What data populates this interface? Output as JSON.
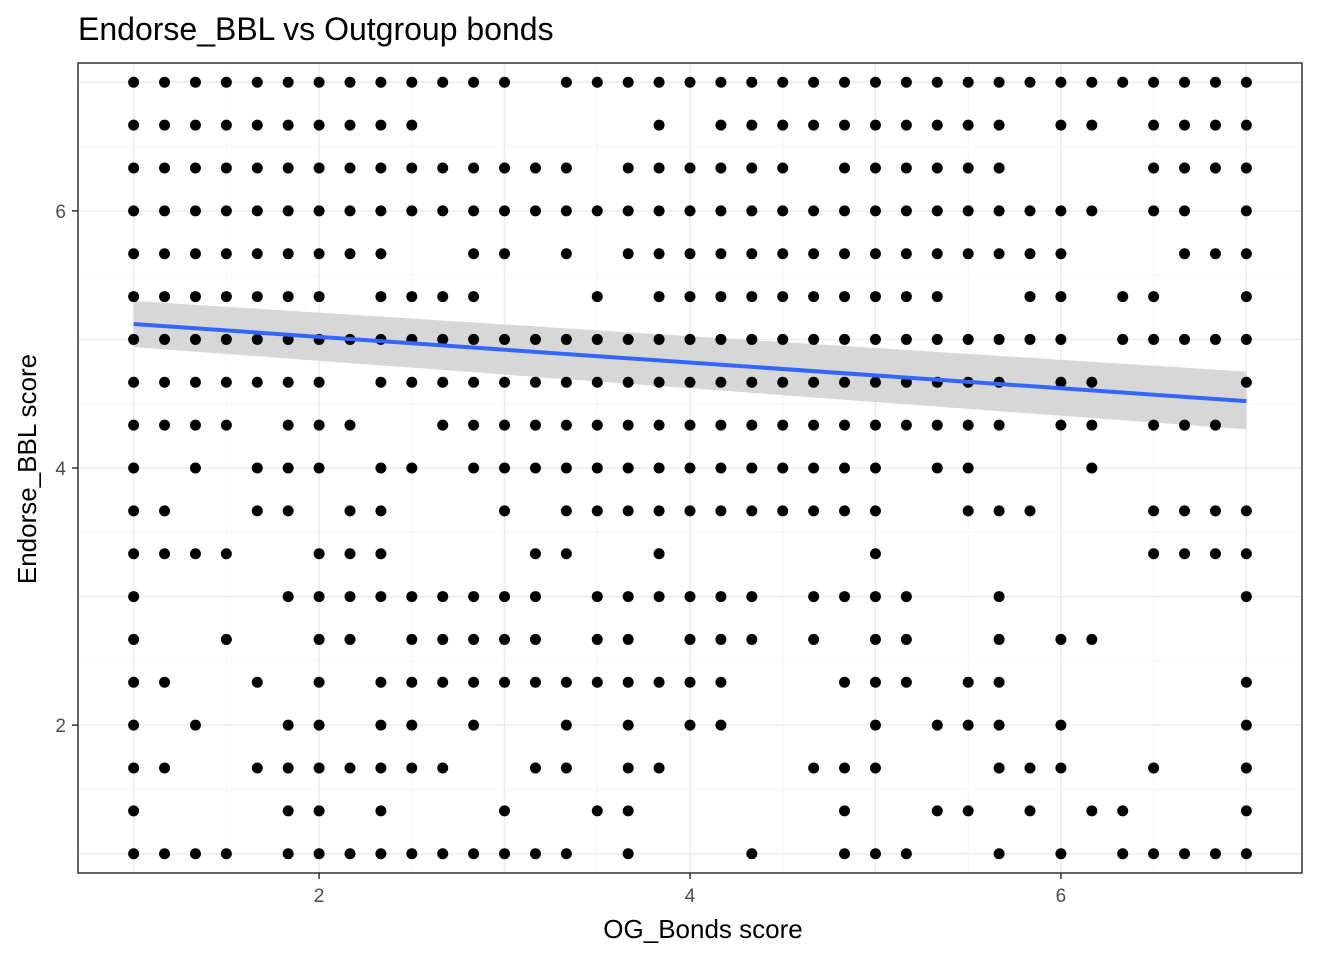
{
  "chart_data": {
    "type": "scatter",
    "title": "Endorse_BBL vs Outgroup bonds",
    "xlabel": "OG_Bonds score",
    "ylabel": "Endorse_BBL score",
    "xlim": [
      0.7,
      7.3
    ],
    "ylim": [
      0.85,
      7.15
    ],
    "x_ticks": [
      2,
      4,
      6
    ],
    "y_ticks": [
      2,
      4,
      6
    ],
    "x_grid": [
      1,
      2,
      3,
      4,
      5,
      6,
      7
    ],
    "y_grid": [
      1,
      2,
      3,
      4,
      5,
      6,
      7
    ],
    "grid": true,
    "colors": {
      "points": "#000000",
      "fit_line": "#3366FF",
      "confidence_band": "#D3D3D3",
      "panel_border": "#333333",
      "grid_major": "#EBEBEB",
      "grid_minor": "#F5F5F5"
    },
    "x_grid_values": [
      1.0,
      1.1667,
      1.3333,
      1.5,
      1.6667,
      1.8333,
      2.0,
      2.1667,
      2.3333,
      2.5,
      2.6667,
      2.8333,
      3.0,
      3.1667,
      3.3333,
      3.5,
      3.6667,
      3.8333,
      4.0,
      4.1667,
      4.3333,
      4.5,
      4.6667,
      4.8333,
      5.0,
      5.1667,
      5.3333,
      5.5,
      5.6667,
      5.8333,
      6.0,
      6.1667,
      6.3333,
      6.5,
      6.6667,
      6.8333,
      7.0
    ],
    "y_levels": [
      7.0,
      6.6667,
      6.3333,
      6.0,
      5.6667,
      5.3333,
      5.0,
      4.6667,
      4.3333,
      4.0,
      3.6667,
      3.3333,
      3.0,
      2.6667,
      2.3333,
      2.0,
      1.6667,
      1.3333,
      1.0
    ],
    "points_by_y": [
      {
        "y": 7.0,
        "x_idx": [
          0,
          1,
          2,
          3,
          4,
          5,
          6,
          7,
          8,
          9,
          10,
          11,
          12,
          14,
          15,
          16,
          17,
          18,
          19,
          20,
          21,
          22,
          23,
          24,
          25,
          26,
          27,
          28,
          29,
          30,
          31,
          32,
          33,
          34,
          35,
          36
        ]
      },
      {
        "y": 6.6667,
        "x_idx": [
          0,
          1,
          2,
          3,
          4,
          5,
          6,
          7,
          8,
          9,
          17,
          19,
          20,
          21,
          22,
          23,
          24,
          25,
          26,
          27,
          28,
          30,
          31,
          33,
          34,
          35,
          36
        ]
      },
      {
        "y": 6.3333,
        "x_idx": [
          0,
          1,
          2,
          3,
          4,
          5,
          6,
          7,
          8,
          9,
          10,
          11,
          12,
          13,
          14,
          16,
          17,
          18,
          19,
          20,
          21,
          23,
          24,
          25,
          26,
          27,
          28,
          33,
          34,
          35,
          36
        ]
      },
      {
        "y": 6.0,
        "x_idx": [
          0,
          1,
          2,
          3,
          4,
          5,
          6,
          7,
          8,
          9,
          10,
          11,
          12,
          13,
          14,
          15,
          16,
          17,
          18,
          19,
          20,
          21,
          22,
          23,
          24,
          25,
          26,
          27,
          28,
          29,
          30,
          31,
          33,
          34,
          36
        ]
      },
      {
        "y": 5.6667,
        "x_idx": [
          0,
          1,
          2,
          3,
          4,
          5,
          6,
          7,
          8,
          11,
          12,
          14,
          16,
          17,
          18,
          19,
          20,
          21,
          22,
          23,
          24,
          25,
          26,
          27,
          28,
          29,
          30,
          34,
          35,
          36
        ]
      },
      {
        "y": 5.3333,
        "x_idx": [
          0,
          1,
          2,
          3,
          4,
          5,
          6,
          8,
          9,
          10,
          11,
          15,
          17,
          18,
          19,
          20,
          21,
          22,
          23,
          24,
          25,
          26,
          29,
          30,
          32,
          33,
          36
        ]
      },
      {
        "y": 5.0,
        "x_idx": [
          0,
          1,
          2,
          3,
          4,
          5,
          6,
          7,
          8,
          9,
          10,
          11,
          12,
          13,
          14,
          15,
          16,
          17,
          18,
          19,
          20,
          21,
          22,
          23,
          24,
          25,
          26,
          27,
          28,
          29,
          30,
          32,
          33,
          34,
          35,
          36
        ]
      },
      {
        "y": 4.6667,
        "x_idx": [
          0,
          1,
          2,
          3,
          4,
          5,
          6,
          8,
          9,
          10,
          11,
          12,
          13,
          14,
          15,
          16,
          17,
          18,
          19,
          20,
          21,
          22,
          23,
          24,
          25,
          26,
          27,
          28,
          30,
          31,
          36
        ]
      },
      {
        "y": 4.3333,
        "x_idx": [
          0,
          1,
          2,
          3,
          5,
          6,
          7,
          10,
          11,
          12,
          13,
          14,
          15,
          16,
          17,
          18,
          19,
          20,
          21,
          22,
          23,
          24,
          25,
          26,
          27,
          28,
          30,
          31,
          33,
          34,
          35
        ]
      },
      {
        "y": 4.0,
        "x_idx": [
          0,
          2,
          4,
          5,
          6,
          8,
          9,
          11,
          12,
          13,
          14,
          15,
          16,
          17,
          18,
          19,
          20,
          21,
          22,
          23,
          24,
          26,
          27,
          31
        ]
      },
      {
        "y": 3.6667,
        "x_idx": [
          0,
          1,
          4,
          5,
          7,
          8,
          12,
          14,
          15,
          16,
          17,
          18,
          19,
          20,
          21,
          22,
          23,
          24,
          27,
          28,
          29,
          33,
          34,
          35,
          36
        ]
      },
      {
        "y": 3.3333,
        "x_idx": [
          0,
          1,
          2,
          3,
          6,
          7,
          8,
          13,
          14,
          17,
          24,
          33,
          34,
          35,
          36
        ]
      },
      {
        "y": 3.0,
        "x_idx": [
          0,
          5,
          6,
          7,
          8,
          9,
          10,
          11,
          12,
          13,
          15,
          16,
          17,
          18,
          19,
          20,
          22,
          23,
          24,
          25,
          28,
          36
        ]
      },
      {
        "y": 2.6667,
        "x_idx": [
          0,
          3,
          6,
          7,
          9,
          10,
          11,
          12,
          13,
          15,
          16,
          18,
          19,
          20,
          22,
          24,
          25,
          28,
          30,
          31
        ]
      },
      {
        "y": 2.3333,
        "x_idx": [
          0,
          1,
          4,
          6,
          8,
          9,
          10,
          11,
          12,
          13,
          14,
          15,
          16,
          17,
          18,
          19,
          23,
          24,
          25,
          27,
          28,
          36
        ]
      },
      {
        "y": 2.0,
        "x_idx": [
          0,
          2,
          5,
          6,
          8,
          9,
          11,
          14,
          16,
          18,
          19,
          24,
          26,
          27,
          28,
          30,
          36
        ]
      },
      {
        "y": 1.6667,
        "x_idx": [
          0,
          1,
          4,
          5,
          6,
          7,
          8,
          9,
          10,
          13,
          14,
          16,
          17,
          22,
          23,
          24,
          28,
          29,
          30,
          33,
          36
        ]
      },
      {
        "y": 1.3333,
        "x_idx": [
          0,
          5,
          6,
          8,
          12,
          15,
          16,
          23,
          26,
          27,
          29,
          31,
          32,
          36
        ]
      },
      {
        "y": 1.0,
        "x_idx": [
          0,
          1,
          2,
          3,
          5,
          6,
          7,
          8,
          9,
          10,
          11,
          12,
          13,
          14,
          16,
          20,
          23,
          24,
          25,
          28,
          30,
          32,
          33,
          34,
          35,
          36
        ]
      }
    ],
    "fit": {
      "method": "lm",
      "x": [
        1,
        7
      ],
      "y": [
        5.12,
        4.52
      ],
      "band_lower": [
        4.94,
        4.3
      ],
      "band_upper": [
        5.3,
        4.75
      ]
    }
  }
}
